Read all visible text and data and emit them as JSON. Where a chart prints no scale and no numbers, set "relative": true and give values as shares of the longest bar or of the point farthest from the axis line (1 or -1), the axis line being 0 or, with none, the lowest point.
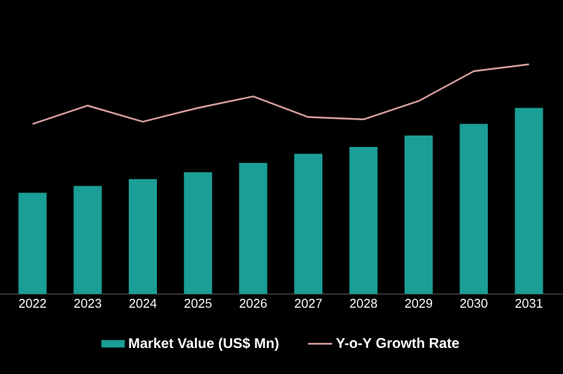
{
  "chart_data": {
    "type": "bar",
    "relative": true,
    "legend": "bottom",
    "categories": [
      "2022",
      "2023",
      "2024",
      "2025",
      "2026",
      "2027",
      "2028",
      "2029",
      "2030",
      "2031"
    ],
    "series": [
      {
        "name": "Market Value (US$ Mn)",
        "color": "#1a9e96",
        "values": [
          0.44,
          0.47,
          0.5,
          0.53,
          0.57,
          0.61,
          0.64,
          0.69,
          0.74,
          0.81
        ]
      },
      {
        "name": "Y-o-Y Growth Rate",
        "type": "line",
        "color": "#d9a0a0",
        "values": [
          0.74,
          0.82,
          0.75,
          0.81,
          0.86,
          0.77,
          0.76,
          0.84,
          0.97,
          1.0
        ]
      }
    ]
  }
}
